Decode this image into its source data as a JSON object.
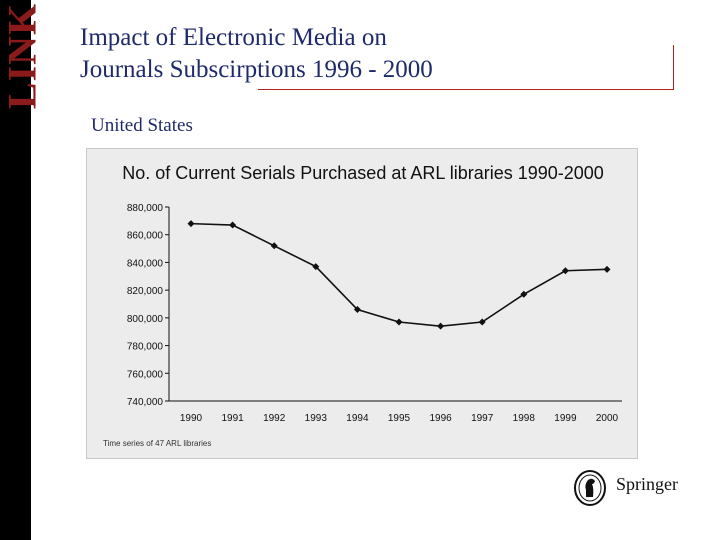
{
  "brand": {
    "logo_text": "LINK",
    "springer_text": "Springer"
  },
  "header": {
    "title_line1": "Impact of Electronic Media on",
    "title_line2": "Journals Subscirptions 1996 - 2000",
    "subtitle": "United States"
  },
  "colors": {
    "title": "#1f2a6b",
    "accent": "#b22222",
    "chart_bg": "#ececec",
    "line": "#111111"
  },
  "chart_data": {
    "type": "line",
    "title": "No. of Current Serials Purchased at ARL libraries 1990-2000",
    "footnote": "Time series of 47 ARL libraries",
    "categories": [
      "1990",
      "1991",
      "1992",
      "1993",
      "1994",
      "1995",
      "1996",
      "1997",
      "1998",
      "1999",
      "2000"
    ],
    "values": [
      868000,
      867000,
      852000,
      837000,
      806000,
      797000,
      794000,
      797000,
      817000,
      834000,
      835000
    ],
    "ylim": [
      740000,
      880000
    ],
    "yticks": [
      "880,000",
      "860,000",
      "840,000",
      "820,000",
      "800,000",
      "780,000",
      "760,000",
      "740,000"
    ],
    "grid": false
  }
}
